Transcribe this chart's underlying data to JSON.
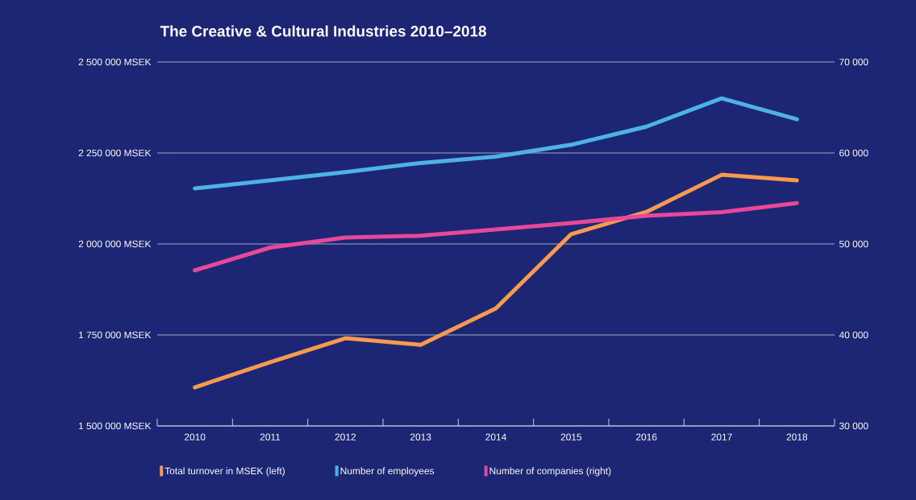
{
  "chart_data": {
    "type": "line",
    "title": "The Creative & Cultural Industries 2010–2018",
    "categories": [
      "2010",
      "2011",
      "2012",
      "2013",
      "2014",
      "2015",
      "2016",
      "2017",
      "2018"
    ],
    "ylim": [
      1500000,
      2500000
    ],
    "yticks": [
      {
        "value": 1500000,
        "label": "1 500 000 MSEK"
      },
      {
        "value": 1750000,
        "label": "1 750 000 MSEK"
      },
      {
        "value": 2000000,
        "label": "2 000 000 MSEK"
      },
      {
        "value": 2250000,
        "label": "2 250 000 MSEK"
      },
      {
        "value": 2500000,
        "label": "2 500 000 MSEK"
      }
    ],
    "y2lim": [
      30000,
      70000
    ],
    "y2ticks": [
      {
        "value": 30000,
        "label": "30 000"
      },
      {
        "value": 40000,
        "label": "40 000"
      },
      {
        "value": 50000,
        "label": "50 000"
      },
      {
        "value": 60000,
        "label": "60 000"
      },
      {
        "value": 70000,
        "label": "70 000"
      }
    ],
    "grid": "y",
    "legend": "bottom",
    "series": [
      {
        "name": "Total turnover in MSEK (left)",
        "color": "#f7994f",
        "axis": "y",
        "values": [
          1606000,
          1675000,
          1741000,
          1723000,
          1823000,
          2027000,
          2088000,
          2190000,
          2175000
        ]
      },
      {
        "name": "Number of employees",
        "color": "#4db3e6",
        "axis": "y2",
        "values": [
          56100,
          57000,
          57900,
          58900,
          59600,
          60900,
          62900,
          66000,
          63700
        ]
      },
      {
        "name": "Number of companies (right)",
        "color": "#e8489a",
        "axis": "y2",
        "values": [
          47100,
          49600,
          50700,
          50900,
          51600,
          52300,
          53100,
          53500,
          54500
        ]
      }
    ]
  }
}
